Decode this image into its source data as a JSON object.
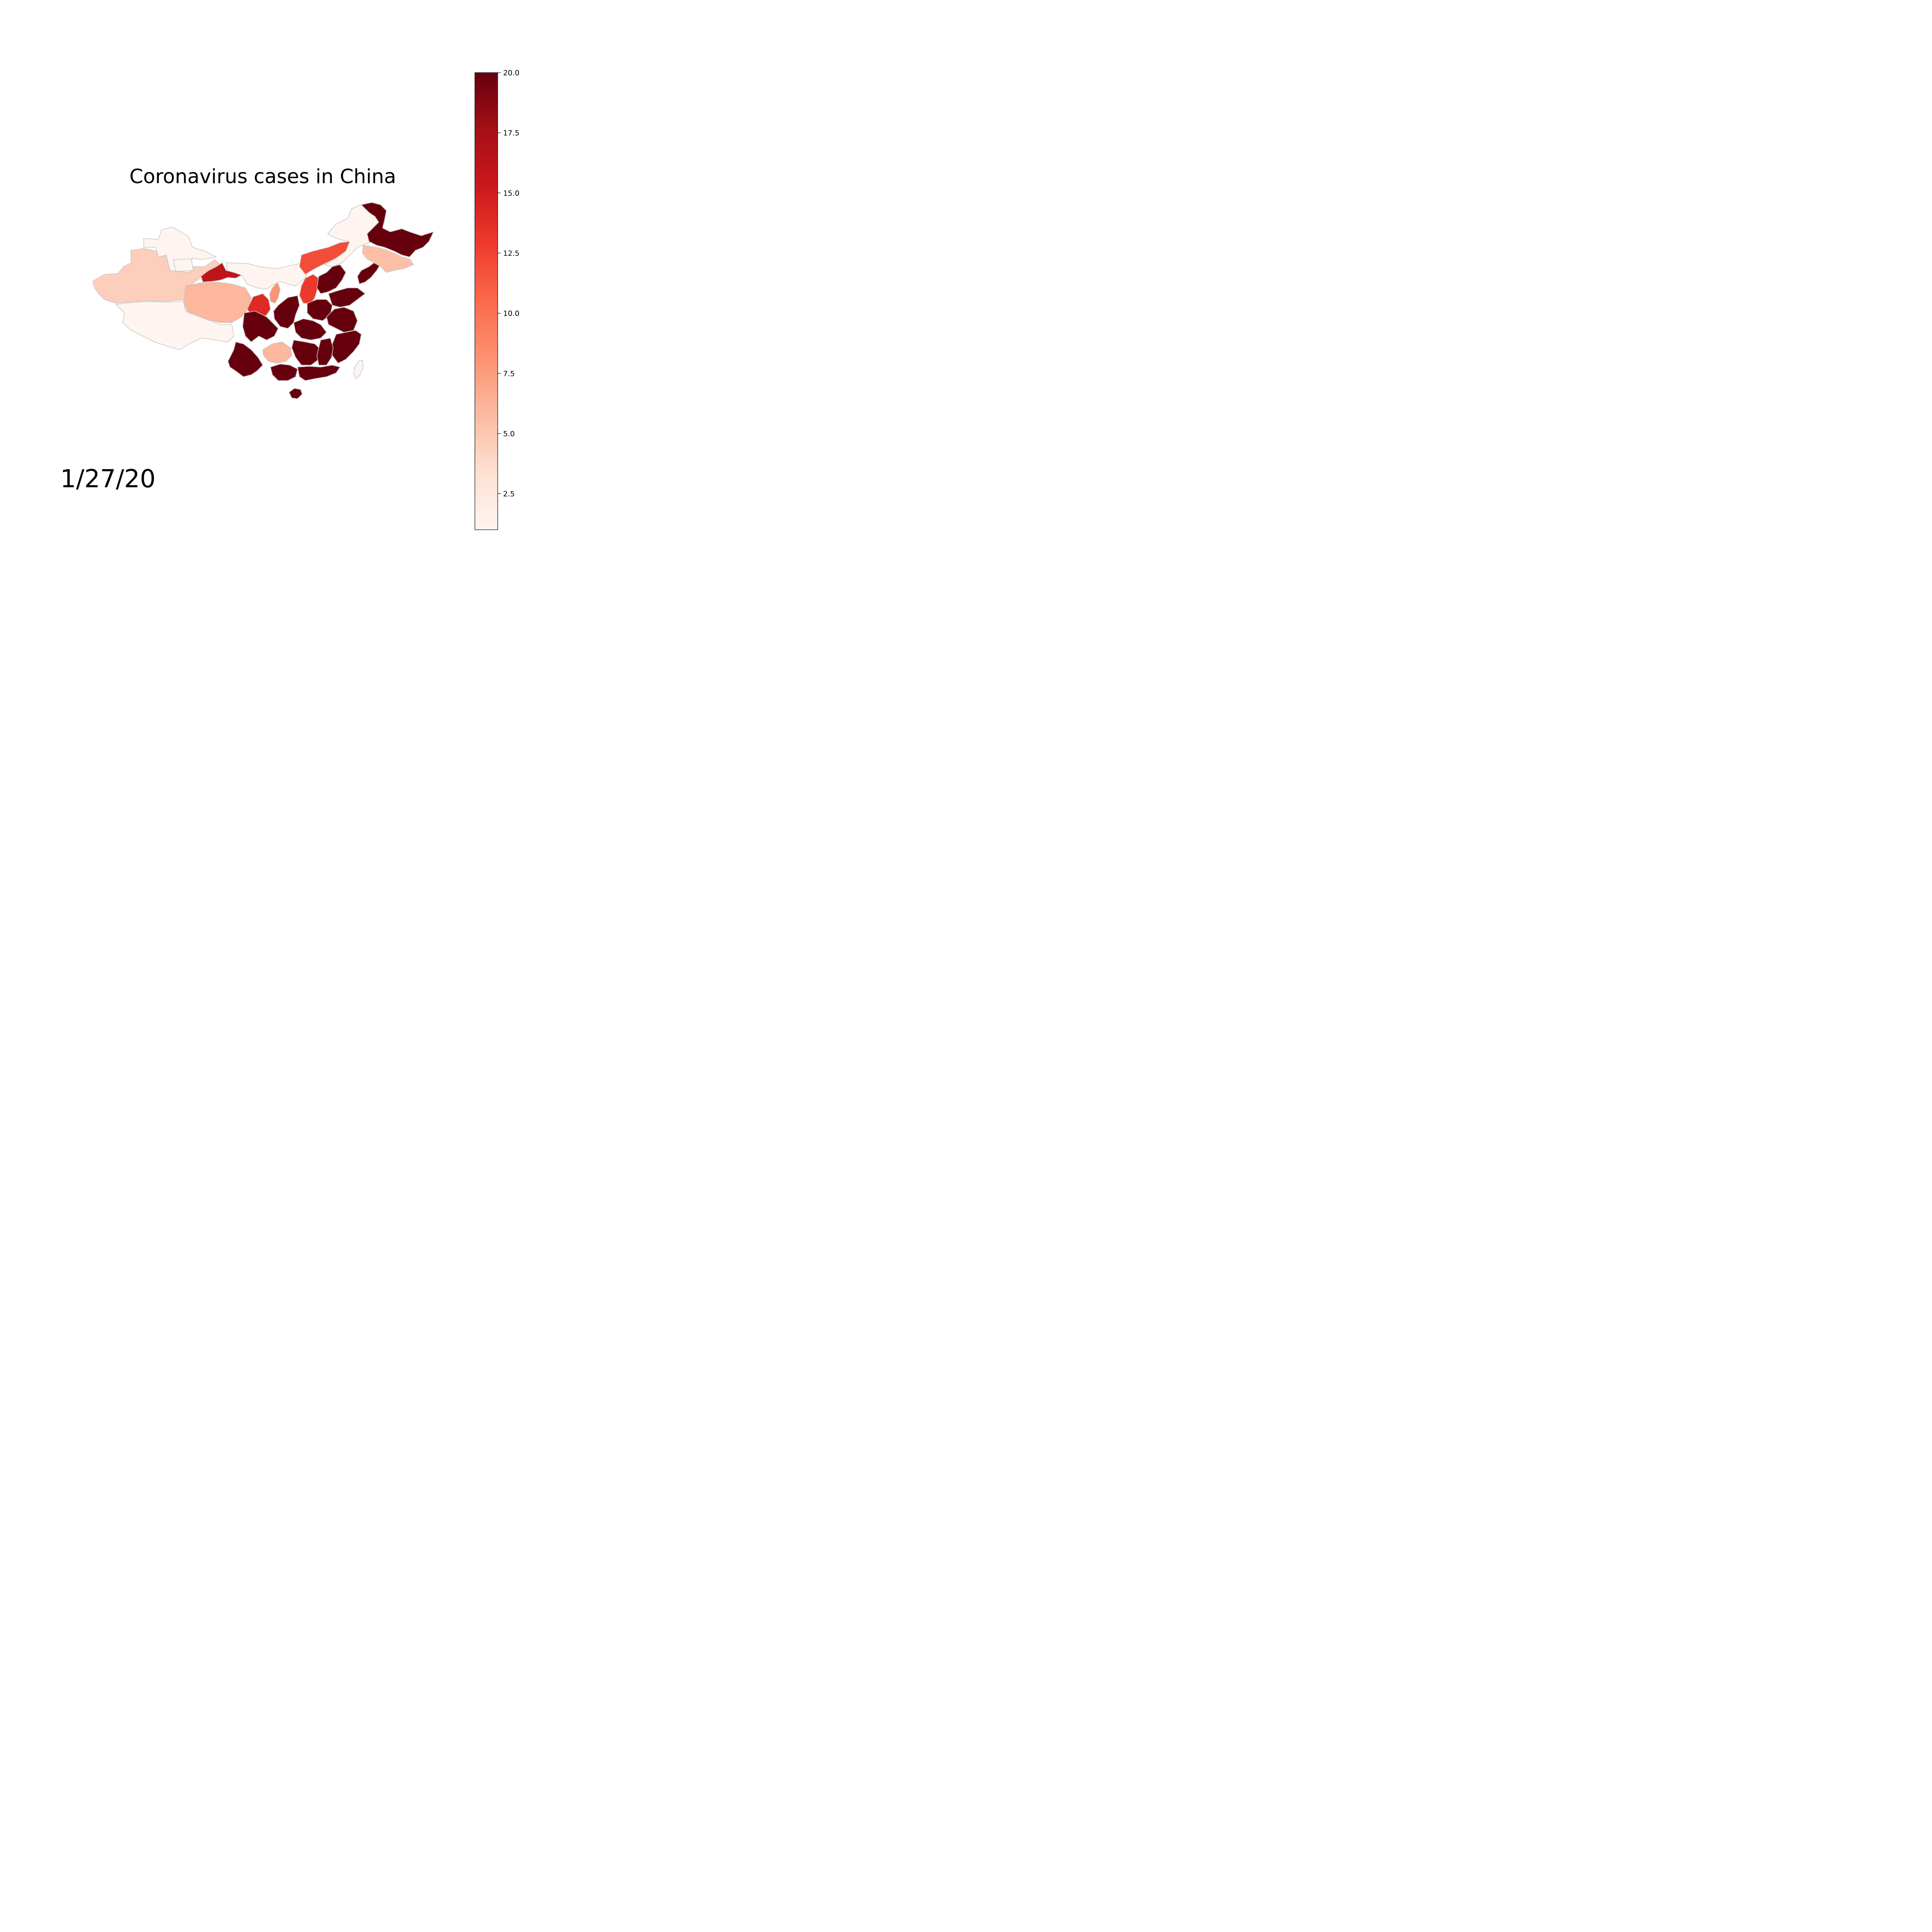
{
  "title": "Coronavirus cases in China",
  "date_label": "1/27/20",
  "colormap": {
    "name": "Reds",
    "stops": [
      "#fff5f0",
      "#fee0d2",
      "#fcbba1",
      "#fc9272",
      "#fb6a4a",
      "#ef3b2c",
      "#cb181d",
      "#a50f15",
      "#67000d"
    ]
  },
  "colorbar": {
    "min": 1,
    "max": 20,
    "ticks": [
      {
        "value": 2.5,
        "label": "2.5"
      },
      {
        "value": 5.0,
        "label": "5.0"
      },
      {
        "value": 7.5,
        "label": "7.5"
      },
      {
        "value": 10.0,
        "label": "10.0"
      },
      {
        "value": 12.5,
        "label": "12.5"
      },
      {
        "value": 15.0,
        "label": "15.0"
      },
      {
        "value": 17.5,
        "label": "17.5"
      },
      {
        "value": 20.0,
        "label": "20.0"
      }
    ]
  },
  "border_color": "#c8c8c8",
  "regions": [
    {
      "name": "xinjiang-north",
      "value": 1
    },
    {
      "name": "xinjiang-south",
      "value": 4.5
    },
    {
      "name": "xinjiang-inner",
      "value": 1
    },
    {
      "name": "tibet",
      "value": 1
    },
    {
      "name": "qinghai",
      "value": 6
    },
    {
      "name": "gansu",
      "value": 16
    },
    {
      "name": "gansu-south",
      "value": 14
    },
    {
      "name": "ningxia",
      "value": 8
    },
    {
      "name": "inner-mongolia-west",
      "value": 1
    },
    {
      "name": "inner-mongolia-central",
      "value": 12
    },
    {
      "name": "inner-mongolia-east",
      "value": 1
    },
    {
      "name": "shanxi",
      "value": 13
    },
    {
      "name": "heilongjiang",
      "value": 20
    },
    {
      "name": "jilin",
      "value": 5.5
    },
    {
      "name": "liaoning",
      "value": 20
    },
    {
      "name": "hebei",
      "value": 20
    },
    {
      "name": "sichuan",
      "value": 20
    },
    {
      "name": "shaanxi",
      "value": 20
    },
    {
      "name": "guizhou",
      "value": 6
    },
    {
      "name": "yunnan",
      "value": 20
    },
    {
      "name": "hubei",
      "value": 20
    },
    {
      "name": "hunan",
      "value": 20
    },
    {
      "name": "henan",
      "value": 20
    },
    {
      "name": "shandong",
      "value": 20
    },
    {
      "name": "jiangsu-anhui",
      "value": 20
    },
    {
      "name": "zhejiang-fujian",
      "value": 20
    },
    {
      "name": "jiangxi",
      "value": 20
    },
    {
      "name": "guangxi",
      "value": 20
    },
    {
      "name": "guangdong",
      "value": 20
    },
    {
      "name": "hainan",
      "value": 20
    },
    {
      "name": "taiwan",
      "value": 1
    }
  ]
}
